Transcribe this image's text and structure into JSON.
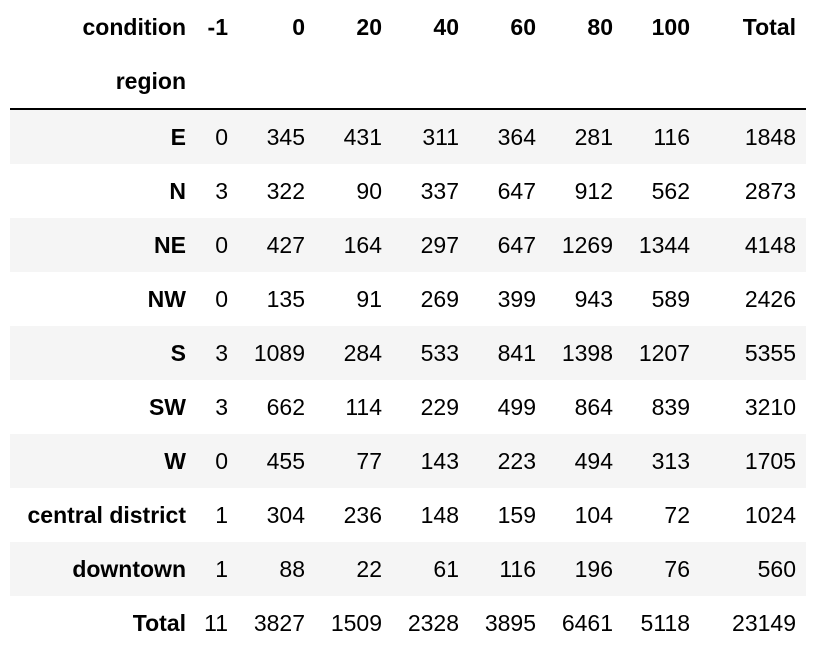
{
  "table": {
    "column_axis_name": "condition",
    "index_axis_name": "region",
    "columns": [
      "-1",
      "0",
      "20",
      "40",
      "60",
      "80",
      "100",
      "Total"
    ],
    "rows": [
      {
        "label": "E",
        "values": [
          "0",
          "345",
          "431",
          "311",
          "364",
          "281",
          "116",
          "1848"
        ]
      },
      {
        "label": "N",
        "values": [
          "3",
          "322",
          "90",
          "337",
          "647",
          "912",
          "562",
          "2873"
        ]
      },
      {
        "label": "NE",
        "values": [
          "0",
          "427",
          "164",
          "297",
          "647",
          "1269",
          "1344",
          "4148"
        ]
      },
      {
        "label": "NW",
        "values": [
          "0",
          "135",
          "91",
          "269",
          "399",
          "943",
          "589",
          "2426"
        ]
      },
      {
        "label": "S",
        "values": [
          "3",
          "1089",
          "284",
          "533",
          "841",
          "1398",
          "1207",
          "5355"
        ]
      },
      {
        "label": "SW",
        "values": [
          "3",
          "662",
          "114",
          "229",
          "499",
          "864",
          "839",
          "3210"
        ]
      },
      {
        "label": "W",
        "values": [
          "0",
          "455",
          "77",
          "143",
          "223",
          "494",
          "313",
          "1705"
        ]
      },
      {
        "label": "central district",
        "values": [
          "1",
          "304",
          "236",
          "148",
          "159",
          "104",
          "72",
          "1024"
        ]
      },
      {
        "label": "downtown",
        "values": [
          "1",
          "88",
          "22",
          "61",
          "116",
          "196",
          "76",
          "560"
        ]
      },
      {
        "label": "Total",
        "values": [
          "11",
          "3827",
          "1509",
          "2328",
          "3895",
          "6461",
          "5118",
          "23149"
        ]
      }
    ]
  }
}
